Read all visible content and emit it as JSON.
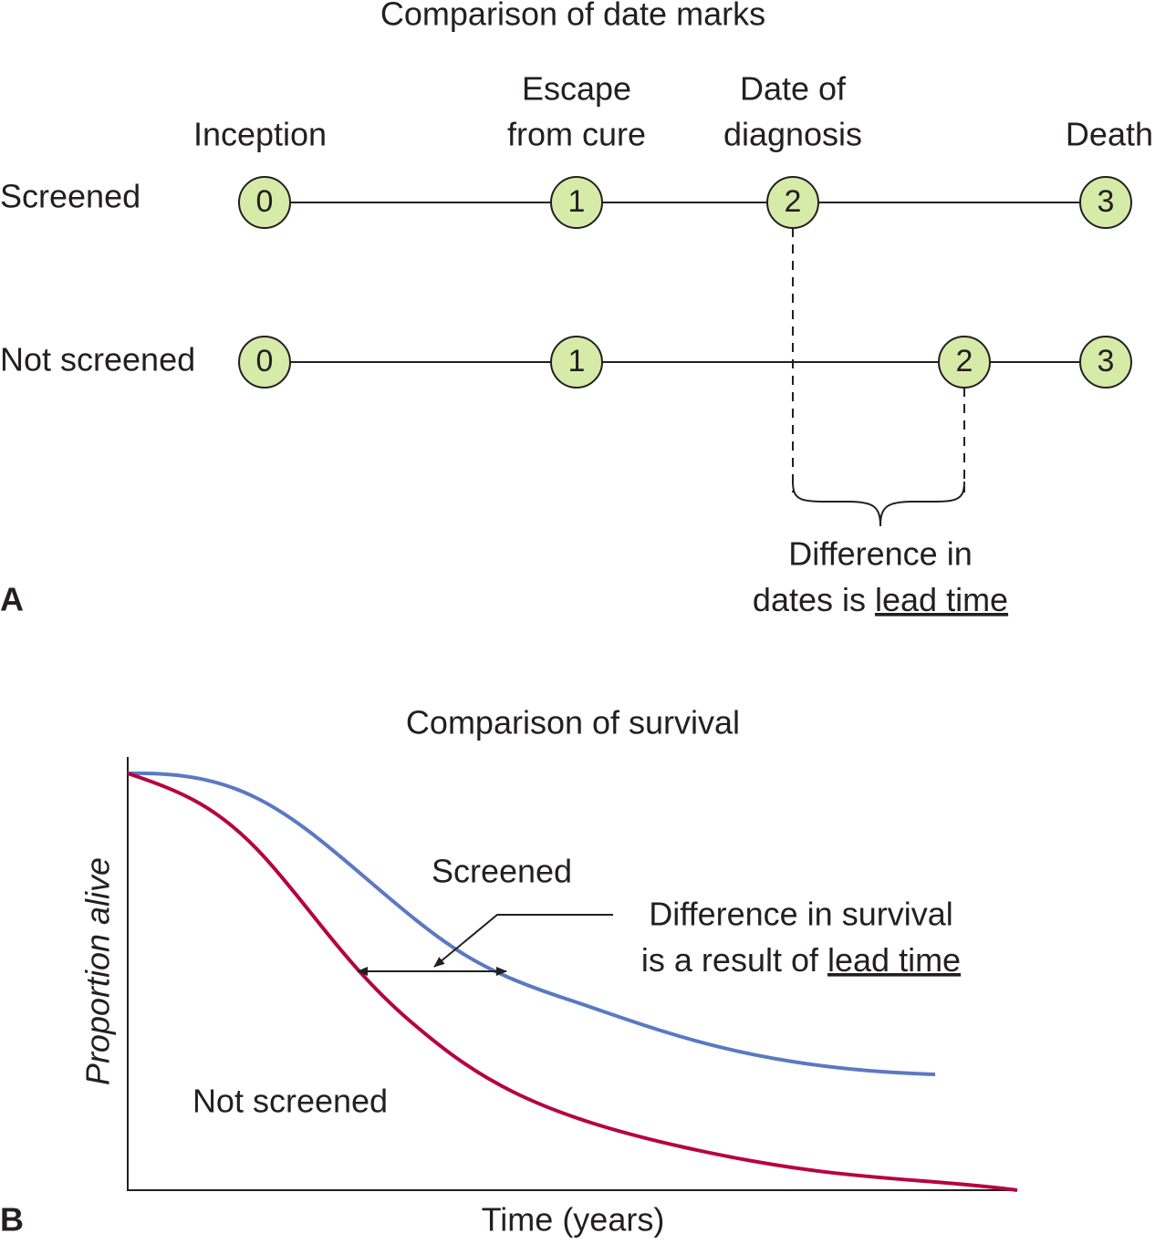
{
  "panel_a": {
    "letter": "A",
    "title": "Comparison of date marks",
    "columns": [
      [
        "Inception"
      ],
      [
        "Escape",
        "from cure"
      ],
      [
        "Date of",
        "diagnosis"
      ],
      [
        "Death"
      ]
    ],
    "rows": [
      {
        "label": "Screened",
        "nodes": [
          "0",
          "1",
          "2",
          "3"
        ]
      },
      {
        "label": "Not screened",
        "nodes": [
          "0",
          "1",
          "2",
          "3"
        ]
      }
    ],
    "annotation": {
      "line1": "Difference in",
      "line2_prefix": "dates is",
      "line2_emphasis": "lead time"
    }
  },
  "panel_b": {
    "letter": "B",
    "title": "Comparison of survival",
    "y_label": "Proportion alive",
    "x_label": "Time (years)",
    "curve_labels": [
      "Screened",
      "Not screened"
    ],
    "annotation": {
      "line1": "Difference in survival",
      "line2_prefix": "is a result of",
      "line2_emphasis": "lead time"
    }
  }
}
